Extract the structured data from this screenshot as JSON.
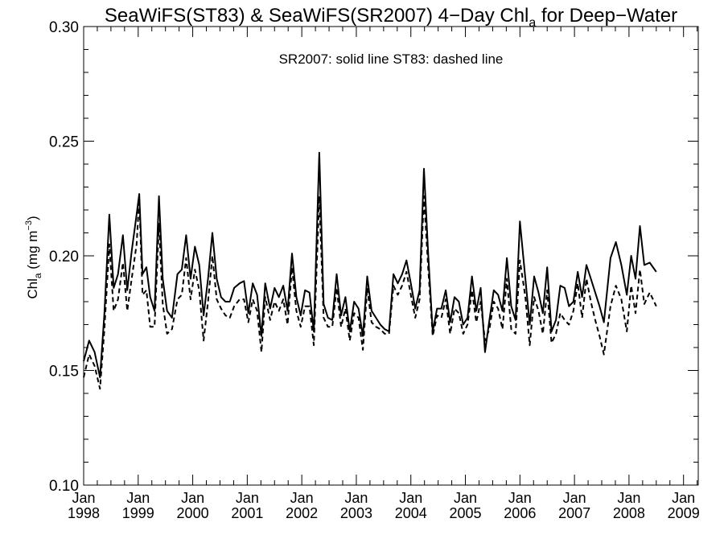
{
  "chart_data": {
    "type": "line",
    "title_main": "SeaWiFS(ST83) & SeaWiFS(SR2007) 4−Day Chl",
    "title_sub": "a",
    "title_tail": " for Deep−Water",
    "ylabel_main": "Chl",
    "ylabel_sub": "a",
    "ylabel_unit_pre": " (mg m",
    "ylabel_unit_sup": "−3",
    "ylabel_unit_post": ")",
    "annotation": "SR2007: solid line   ST83: dashed line",
    "xlim": [
      1998.0,
      2009.27
    ],
    "ylim": [
      0.1,
      0.3
    ],
    "y_ticks": [
      "0.10",
      "0.15",
      "0.20",
      "0.25",
      "0.30"
    ],
    "x_ticks": [
      {
        "month": "Jan",
        "year": "1998",
        "x": 1998.0
      },
      {
        "month": "Jan",
        "year": "1999",
        "x": 1999.0
      },
      {
        "month": "Jan",
        "year": "2000",
        "x": 2000.0
      },
      {
        "month": "Jan",
        "year": "2001",
        "x": 2001.0
      },
      {
        "month": "Jan",
        "year": "2002",
        "x": 2002.0
      },
      {
        "month": "Jan",
        "year": "2003",
        "x": 2003.0
      },
      {
        "month": "Jan",
        "year": "2004",
        "x": 2004.0
      },
      {
        "month": "Jan",
        "year": "2005",
        "x": 2005.0
      },
      {
        "month": "Jan",
        "year": "2006",
        "x": 2006.0
      },
      {
        "month": "Jan",
        "year": "2007",
        "x": 2007.0
      },
      {
        "month": "Jan",
        "year": "2008",
        "x": 2008.0
      },
      {
        "month": "Jan",
        "year": "2009",
        "x": 2009.0
      }
    ],
    "series": [
      {
        "name": "SR2007",
        "style": "solid",
        "color": "#000000",
        "points": [
          [
            1998.0,
            0.154
          ],
          [
            1998.1,
            0.163
          ],
          [
            1998.2,
            0.158
          ],
          [
            1998.3,
            0.147
          ],
          [
            1998.38,
            0.175
          ],
          [
            1998.47,
            0.218
          ],
          [
            1998.55,
            0.186
          ],
          [
            1998.63,
            0.192
          ],
          [
            1998.72,
            0.209
          ],
          [
            1998.8,
            0.185
          ],
          [
            1998.88,
            0.202
          ],
          [
            1998.97,
            0.218
          ],
          [
            1999.02,
            0.227
          ],
          [
            1999.08,
            0.192
          ],
          [
            1999.15,
            0.195
          ],
          [
            1999.22,
            0.182
          ],
          [
            1999.3,
            0.176
          ],
          [
            1999.38,
            0.226
          ],
          [
            1999.45,
            0.19
          ],
          [
            1999.53,
            0.176
          ],
          [
            1999.62,
            0.173
          ],
          [
            1999.72,
            0.192
          ],
          [
            1999.8,
            0.194
          ],
          [
            1999.88,
            0.209
          ],
          [
            1999.96,
            0.19
          ],
          [
            2000.04,
            0.204
          ],
          [
            2000.12,
            0.196
          ],
          [
            2000.2,
            0.174
          ],
          [
            2000.28,
            0.19
          ],
          [
            2000.36,
            0.21
          ],
          [
            2000.44,
            0.19
          ],
          [
            2000.52,
            0.182
          ],
          [
            2000.6,
            0.18
          ],
          [
            2000.68,
            0.18
          ],
          [
            2000.76,
            0.186
          ],
          [
            2000.86,
            0.188
          ],
          [
            2000.94,
            0.189
          ],
          [
            2001.02,
            0.175
          ],
          [
            2001.1,
            0.188
          ],
          [
            2001.18,
            0.183
          ],
          [
            2001.26,
            0.165
          ],
          [
            2001.33,
            0.188
          ],
          [
            2001.42,
            0.177
          ],
          [
            2001.5,
            0.186
          ],
          [
            2001.58,
            0.182
          ],
          [
            2001.66,
            0.187
          ],
          [
            2001.74,
            0.176
          ],
          [
            2001.82,
            0.201
          ],
          [
            2001.9,
            0.182
          ],
          [
            2001.98,
            0.174
          ],
          [
            2002.06,
            0.185
          ],
          [
            2002.14,
            0.184
          ],
          [
            2002.22,
            0.167
          ],
          [
            2002.32,
            0.245
          ],
          [
            2002.4,
            0.179
          ],
          [
            2002.48,
            0.173
          ],
          [
            2002.56,
            0.172
          ],
          [
            2002.64,
            0.192
          ],
          [
            2002.72,
            0.174
          ],
          [
            2002.8,
            0.182
          ],
          [
            2002.88,
            0.167
          ],
          [
            2002.96,
            0.18
          ],
          [
            2003.04,
            0.177
          ],
          [
            2003.12,
            0.165
          ],
          [
            2003.2,
            0.191
          ],
          [
            2003.28,
            0.176
          ],
          [
            2003.36,
            0.173
          ],
          [
            2003.44,
            0.17
          ],
          [
            2003.52,
            0.168
          ],
          [
            2003.6,
            0.167
          ],
          [
            2003.68,
            0.192
          ],
          [
            2003.76,
            0.188
          ],
          [
            2003.84,
            0.192
          ],
          [
            2003.92,
            0.198
          ],
          [
            2004.0,
            0.188
          ],
          [
            2004.08,
            0.177
          ],
          [
            2004.16,
            0.185
          ],
          [
            2004.24,
            0.238
          ],
          [
            2004.32,
            0.2
          ],
          [
            2004.4,
            0.167
          ],
          [
            2004.48,
            0.177
          ],
          [
            2004.56,
            0.177
          ],
          [
            2004.64,
            0.185
          ],
          [
            2004.72,
            0.171
          ],
          [
            2004.8,
            0.182
          ],
          [
            2004.88,
            0.18
          ],
          [
            2004.96,
            0.17
          ],
          [
            2005.04,
            0.173
          ],
          [
            2005.12,
            0.191
          ],
          [
            2005.2,
            0.176
          ],
          [
            2005.28,
            0.186
          ],
          [
            2005.36,
            0.158
          ],
          [
            2005.44,
            0.172
          ],
          [
            2005.52,
            0.185
          ],
          [
            2005.6,
            0.183
          ],
          [
            2005.68,
            0.176
          ],
          [
            2005.76,
            0.199
          ],
          [
            2005.84,
            0.178
          ],
          [
            2005.92,
            0.172
          ],
          [
            2006.0,
            0.215
          ],
          [
            2006.1,
            0.19
          ],
          [
            2006.18,
            0.17
          ],
          [
            2006.26,
            0.191
          ],
          [
            2006.34,
            0.184
          ],
          [
            2006.42,
            0.175
          ],
          [
            2006.5,
            0.195
          ],
          [
            2006.58,
            0.167
          ],
          [
            2006.66,
            0.172
          ],
          [
            2006.74,
            0.187
          ],
          [
            2006.82,
            0.186
          ],
          [
            2006.9,
            0.178
          ],
          [
            2006.98,
            0.18
          ],
          [
            2007.06,
            0.193
          ],
          [
            2007.14,
            0.182
          ],
          [
            2007.22,
            0.196
          ],
          [
            2007.3,
            0.19
          ],
          [
            2007.38,
            0.184
          ],
          [
            2007.46,
            0.178
          ],
          [
            2007.54,
            0.171
          ],
          [
            2007.66,
            0.199
          ],
          [
            2007.76,
            0.206
          ],
          [
            2007.86,
            0.196
          ],
          [
            2007.96,
            0.183
          ],
          [
            2008.04,
            0.2
          ],
          [
            2008.12,
            0.19
          ],
          [
            2008.2,
            0.213
          ],
          [
            2008.28,
            0.196
          ],
          [
            2008.38,
            0.197
          ],
          [
            2008.5,
            0.193
          ]
        ]
      },
      {
        "name": "ST83",
        "style": "dashed",
        "color": "#000000",
        "points": [
          [
            1998.0,
            0.147
          ],
          [
            1998.1,
            0.157
          ],
          [
            1998.2,
            0.152
          ],
          [
            1998.3,
            0.142
          ],
          [
            1998.38,
            0.168
          ],
          [
            1998.47,
            0.205
          ],
          [
            1998.55,
            0.176
          ],
          [
            1998.63,
            0.181
          ],
          [
            1998.72,
            0.197
          ],
          [
            1998.8,
            0.176
          ],
          [
            1998.88,
            0.19
          ],
          [
            1998.97,
            0.205
          ],
          [
            1999.02,
            0.225
          ],
          [
            1999.08,
            0.183
          ],
          [
            1999.15,
            0.185
          ],
          [
            1999.22,
            0.169
          ],
          [
            1999.3,
            0.169
          ],
          [
            1999.38,
            0.214
          ],
          [
            1999.45,
            0.179
          ],
          [
            1999.53,
            0.166
          ],
          [
            1999.62,
            0.168
          ],
          [
            1999.72,
            0.181
          ],
          [
            1999.8,
            0.183
          ],
          [
            1999.88,
            0.199
          ],
          [
            1999.96,
            0.181
          ],
          [
            2000.04,
            0.194
          ],
          [
            2000.12,
            0.185
          ],
          [
            2000.2,
            0.163
          ],
          [
            2000.28,
            0.18
          ],
          [
            2000.36,
            0.2
          ],
          [
            2000.44,
            0.181
          ],
          [
            2000.52,
            0.177
          ],
          [
            2000.6,
            0.174
          ],
          [
            2000.68,
            0.173
          ],
          [
            2000.76,
            0.178
          ],
          [
            2000.86,
            0.181
          ],
          [
            2000.94,
            0.181
          ],
          [
            2001.02,
            0.171
          ],
          [
            2001.1,
            0.181
          ],
          [
            2001.18,
            0.176
          ],
          [
            2001.26,
            0.158
          ],
          [
            2001.33,
            0.182
          ],
          [
            2001.42,
            0.172
          ],
          [
            2001.5,
            0.18
          ],
          [
            2001.58,
            0.176
          ],
          [
            2001.66,
            0.181
          ],
          [
            2001.74,
            0.17
          ],
          [
            2001.82,
            0.195
          ],
          [
            2001.9,
            0.176
          ],
          [
            2001.98,
            0.169
          ],
          [
            2002.06,
            0.178
          ],
          [
            2002.14,
            0.178
          ],
          [
            2002.22,
            0.161
          ],
          [
            2002.32,
            0.226
          ],
          [
            2002.4,
            0.173
          ],
          [
            2002.48,
            0.169
          ],
          [
            2002.56,
            0.169
          ],
          [
            2002.64,
            0.186
          ],
          [
            2002.72,
            0.169
          ],
          [
            2002.8,
            0.177
          ],
          [
            2002.88,
            0.163
          ],
          [
            2002.96,
            0.175
          ],
          [
            2003.04,
            0.173
          ],
          [
            2003.12,
            0.159
          ],
          [
            2003.2,
            0.186
          ],
          [
            2003.28,
            0.171
          ],
          [
            2003.36,
            0.169
          ],
          [
            2003.44,
            0.168
          ],
          [
            2003.52,
            0.166
          ],
          [
            2003.6,
            0.166
          ],
          [
            2003.68,
            0.187
          ],
          [
            2003.76,
            0.183
          ],
          [
            2003.84,
            0.187
          ],
          [
            2003.92,
            0.193
          ],
          [
            2004.0,
            0.183
          ],
          [
            2004.08,
            0.173
          ],
          [
            2004.16,
            0.181
          ],
          [
            2004.24,
            0.226
          ],
          [
            2004.32,
            0.194
          ],
          [
            2004.4,
            0.165
          ],
          [
            2004.48,
            0.174
          ],
          [
            2004.56,
            0.173
          ],
          [
            2004.64,
            0.181
          ],
          [
            2004.72,
            0.166
          ],
          [
            2004.8,
            0.177
          ],
          [
            2004.88,
            0.175
          ],
          [
            2004.96,
            0.166
          ],
          [
            2005.04,
            0.17
          ],
          [
            2005.12,
            0.185
          ],
          [
            2005.2,
            0.171
          ],
          [
            2005.28,
            0.18
          ],
          [
            2005.36,
            0.163
          ],
          [
            2005.44,
            0.168
          ],
          [
            2005.52,
            0.18
          ],
          [
            2005.6,
            0.177
          ],
          [
            2005.68,
            0.168
          ],
          [
            2005.76,
            0.19
          ],
          [
            2005.84,
            0.168
          ],
          [
            2005.92,
            0.166
          ],
          [
            2006.0,
            0.198
          ],
          [
            2006.1,
            0.182
          ],
          [
            2006.18,
            0.161
          ],
          [
            2006.26,
            0.182
          ],
          [
            2006.34,
            0.176
          ],
          [
            2006.42,
            0.166
          ],
          [
            2006.5,
            0.185
          ],
          [
            2006.58,
            0.162
          ],
          [
            2006.66,
            0.166
          ],
          [
            2006.74,
            0.175
          ],
          [
            2006.82,
            0.172
          ],
          [
            2006.9,
            0.17
          ],
          [
            2006.98,
            0.176
          ],
          [
            2007.06,
            0.188
          ],
          [
            2007.14,
            0.173
          ],
          [
            2007.22,
            0.19
          ],
          [
            2007.3,
            0.18
          ],
          [
            2007.38,
            0.172
          ],
          [
            2007.46,
            0.165
          ],
          [
            2007.54,
            0.157
          ],
          [
            2007.66,
            0.178
          ],
          [
            2007.76,
            0.187
          ],
          [
            2007.86,
            0.181
          ],
          [
            2007.96,
            0.167
          ],
          [
            2008.04,
            0.187
          ],
          [
            2008.12,
            0.175
          ],
          [
            2008.2,
            0.194
          ],
          [
            2008.28,
            0.179
          ],
          [
            2008.38,
            0.184
          ],
          [
            2008.5,
            0.178
          ]
        ]
      }
    ]
  }
}
